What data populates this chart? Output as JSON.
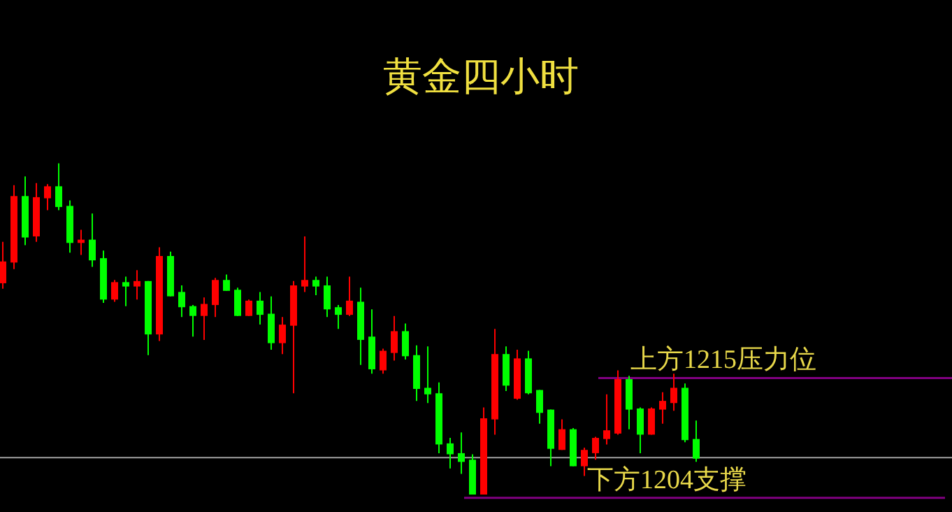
{
  "chart_data": {
    "type": "candlestick",
    "title": "黄金四小时",
    "categories": [
      null,
      null,
      null,
      null,
      null,
      null,
      null,
      null,
      null,
      null,
      null,
      null,
      null,
      null,
      null,
      null,
      null,
      null,
      null,
      null,
      null,
      null,
      null,
      null,
      null,
      null,
      null,
      null,
      null,
      null,
      null,
      null,
      null,
      null,
      null,
      null,
      null,
      null,
      null,
      null,
      null,
      null,
      null,
      null,
      null,
      null,
      null,
      null,
      null,
      null,
      null,
      null,
      null,
      null,
      null,
      null,
      null,
      null,
      null,
      null,
      null,
      null,
      null
    ],
    "ohlc": [
      [
        1223.7,
        1227.5,
        1223.2,
        1225.7
      ],
      [
        1225.6,
        1232.7,
        1225.0,
        1231.7
      ],
      [
        1231.7,
        1233.5,
        1227.2,
        1227.9
      ],
      [
        1228.0,
        1232.9,
        1227.5,
        1231.6
      ],
      [
        1231.5,
        1232.8,
        1230.4,
        1232.6
      ],
      [
        1232.6,
        1234.7,
        1230.4,
        1230.7
      ],
      [
        1230.8,
        1231.3,
        1226.5,
        1227.4
      ],
      [
        1227.4,
        1228.6,
        1226.3,
        1227.7
      ],
      [
        1227.7,
        1230.1,
        1225.2,
        1225.8
      ],
      [
        1226.0,
        1226.7,
        1221.9,
        1222.2
      ],
      [
        1222.2,
        1224.0,
        1222.0,
        1223.8
      ],
      [
        1223.8,
        1224.3,
        1221.6,
        1223.4
      ],
      [
        1223.4,
        1224.9,
        1222.2,
        1223.9
      ],
      [
        1223.9,
        1223.9,
        1217.1,
        1219.0
      ],
      [
        1219.0,
        1227.0,
        1218.4,
        1226.2
      ],
      [
        1226.2,
        1226.6,
        1222.5,
        1222.5
      ],
      [
        1222.9,
        1223.5,
        1220.6,
        1221.5
      ],
      [
        1221.6,
        1221.7,
        1218.8,
        1220.7
      ],
      [
        1220.7,
        1222.4,
        1218.5,
        1221.8
      ],
      [
        1221.7,
        1224.2,
        1220.6,
        1224.0
      ],
      [
        1224.0,
        1224.5,
        1223.0,
        1223.0
      ],
      [
        1223.1,
        1223.3,
        1220.7,
        1220.7
      ],
      [
        1220.7,
        1222.2,
        1220.7,
        1222.1
      ],
      [
        1222.1,
        1222.9,
        1219.9,
        1220.8
      ],
      [
        1220.9,
        1222.5,
        1217.6,
        1218.2
      ],
      [
        1218.2,
        1220.6,
        1217.2,
        1219.9
      ],
      [
        1219.8,
        1223.9,
        1213.6,
        1223.5
      ],
      [
        1223.4,
        1228.0,
        1222.9,
        1224.0
      ],
      [
        1224.0,
        1224.3,
        1222.6,
        1223.4
      ],
      [
        1223.5,
        1224.3,
        1220.6,
        1221.3
      ],
      [
        1221.5,
        1221.7,
        1219.5,
        1220.8
      ],
      [
        1220.8,
        1224.3,
        1220.7,
        1222.1
      ],
      [
        1222.0,
        1223.3,
        1216.2,
        1218.5
      ],
      [
        1218.8,
        1221.3,
        1215.4,
        1215.8
      ],
      [
        1215.7,
        1217.7,
        1215.4,
        1217.5
      ],
      [
        1217.3,
        1220.7,
        1216.6,
        1219.3
      ],
      [
        1219.3,
        1220.0,
        1216.7,
        1217.0
      ],
      [
        1217.1,
        1218.0,
        1212.9,
        1214.0
      ],
      [
        1214.1,
        1217.9,
        1212.7,
        1213.5
      ],
      [
        1213.6,
        1214.6,
        1208.1,
        1208.9
      ],
      [
        1209.0,
        1209.5,
        1206.7,
        1208.0
      ],
      [
        1208.1,
        1210.0,
        1206.2,
        1207.3
      ],
      [
        1207.5,
        1208.0,
        1204.3,
        1204.3
      ],
      [
        1204.3,
        1212.3,
        1204.3,
        1211.3
      ],
      [
        1211.2,
        1219.5,
        1209.8,
        1217.2
      ],
      [
        1217.2,
        1217.9,
        1213.8,
        1214.3
      ],
      [
        1213.1,
        1217.6,
        1213.0,
        1216.8
      ],
      [
        1216.8,
        1217.5,
        1213.5,
        1213.6
      ],
      [
        1213.9,
        1213.9,
        1210.8,
        1211.8
      ],
      [
        1212.1,
        1212.1,
        1206.9,
        1208.5
      ],
      [
        1208.4,
        1211.2,
        1208.4,
        1210.3
      ],
      [
        1210.3,
        1210.4,
        1206.9,
        1206.9
      ],
      [
        1206.9,
        1208.6,
        1206.0,
        1208.4
      ],
      [
        1208.1,
        1209.6,
        1207.5,
        1209.5
      ],
      [
        1209.4,
        1213.5,
        1208.9,
        1210.2
      ],
      [
        1209.9,
        1215.7,
        1209.8,
        1214.9
      ],
      [
        1214.9,
        1215.2,
        1210.3,
        1212.1
      ],
      [
        1212.2,
        1212.3,
        1208.1,
        1209.8
      ],
      [
        1209.8,
        1212.3,
        1209.8,
        1212.2
      ],
      [
        1212.1,
        1213.7,
        1210.8,
        1212.9
      ],
      [
        1212.7,
        1215.4,
        1212.0,
        1214.1
      ],
      [
        1214.1,
        1214.5,
        1209.1,
        1209.3
      ],
      [
        1209.4,
        1211.1,
        1207.3,
        1207.6
      ]
    ],
    "colors": [
      "#ff0000",
      "#ff0000",
      "#00ff00",
      "#ff0000",
      "#ff0000",
      "#00ff00",
      "#00ff00",
      "#ff0000",
      "#00ff00",
      "#00ff00",
      "#ff0000",
      "#00ff00",
      "#ff0000",
      "#00ff00",
      "#ff0000",
      "#00ff00",
      "#00ff00",
      "#00ff00",
      "#ff0000",
      "#ff0000",
      "#00ff00",
      "#00ff00",
      "#ff0000",
      "#00ff00",
      "#00ff00",
      "#ff0000",
      "#ff0000",
      "#ff0000",
      "#00ff00",
      "#00ff00",
      "#00ff00",
      "#ff0000",
      "#00ff00",
      "#00ff00",
      "#ff0000",
      "#ff0000",
      "#00ff00",
      "#00ff00",
      "#00ff00",
      "#00ff00",
      "#00ff00",
      "#00ff00",
      "#00ff00",
      "#ff0000",
      "#ff0000",
      "#00ff00",
      "#ff0000",
      "#00ff00",
      "#00ff00",
      "#00ff00",
      "#ff0000",
      "#00ff00",
      "#ff0000",
      "#ff0000",
      "#ff0000",
      "#ff0000",
      "#00ff00",
      "#00ff00",
      "#ff0000",
      "#ff0000",
      "#ff0000",
      "#00ff00",
      "#00ff00"
    ],
    "ylim": [
      1202.7,
      1249.7
    ],
    "ref_lines": [
      {
        "axis": "y",
        "value": 1215,
        "label": "上方1215压力位",
        "color": "#800080"
      },
      {
        "axis": "y",
        "value": 1204,
        "label": "下方1204支撑",
        "color": "#800080"
      },
      {
        "axis": "y",
        "value": 1207.7,
        "color": "#a0a0a0"
      }
    ]
  }
}
